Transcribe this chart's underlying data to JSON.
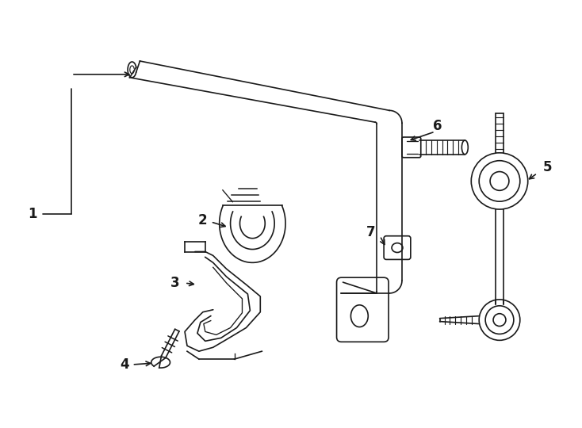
{
  "background_color": "#ffffff",
  "line_color": "#1a1a1a",
  "lw": 1.2,
  "label_fontsize": 12,
  "label_fontweight": "bold",
  "figsize": [
    7.34,
    5.4
  ],
  "dpi": 100
}
